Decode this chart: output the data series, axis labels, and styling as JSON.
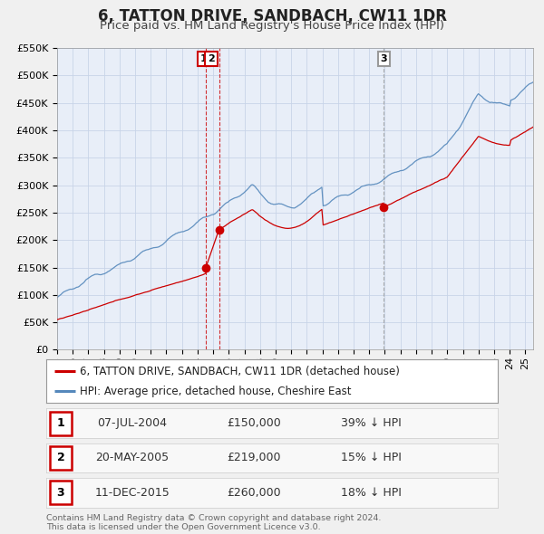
{
  "title": "6, TATTON DRIVE, SANDBACH, CW11 1DR",
  "subtitle": "Price paid vs. HM Land Registry's House Price Index (HPI)",
  "ylim": [
    0,
    550000
  ],
  "xlim_start": 1995.0,
  "xlim_end": 2025.5,
  "yticks": [
    0,
    50000,
    100000,
    150000,
    200000,
    250000,
    300000,
    350000,
    400000,
    450000,
    500000,
    550000
  ],
  "ytick_labels": [
    "£0",
    "£50K",
    "£100K",
    "£150K",
    "£200K",
    "£250K",
    "£300K",
    "£350K",
    "£400K",
    "£450K",
    "£500K",
    "£550K"
  ],
  "xticks": [
    1995,
    1996,
    1997,
    1998,
    1999,
    2000,
    2001,
    2002,
    2003,
    2004,
    2005,
    2006,
    2007,
    2008,
    2009,
    2010,
    2011,
    2012,
    2013,
    2014,
    2015,
    2016,
    2017,
    2018,
    2019,
    2020,
    2021,
    2022,
    2023,
    2024,
    2025
  ],
  "background_color": "#f0f0f0",
  "plot_bg_color": "#e8eef8",
  "grid_color": "#c8d4e8",
  "line_color_red": "#cc0000",
  "line_color_blue": "#5588bb",
  "sale1_date": 2004.53,
  "sale1_price": 150000,
  "sale2_date": 2005.37,
  "sale2_price": 219000,
  "sale3_date": 2015.94,
  "sale3_price": 260000,
  "legend_red_label": "6, TATTON DRIVE, SANDBACH, CW11 1DR (detached house)",
  "legend_blue_label": "HPI: Average price, detached house, Cheshire East",
  "table_rows": [
    {
      "num": "1",
      "date": "07-JUL-2004",
      "price": "£150,000",
      "hpi": "39% ↓ HPI"
    },
    {
      "num": "2",
      "date": "20-MAY-2005",
      "price": "£219,000",
      "hpi": "15% ↓ HPI"
    },
    {
      "num": "3",
      "date": "11-DEC-2015",
      "price": "£260,000",
      "hpi": "18% ↓ HPI"
    }
  ],
  "footnote": "Contains HM Land Registry data © Crown copyright and database right 2024.\nThis data is licensed under the Open Government Licence v3.0."
}
